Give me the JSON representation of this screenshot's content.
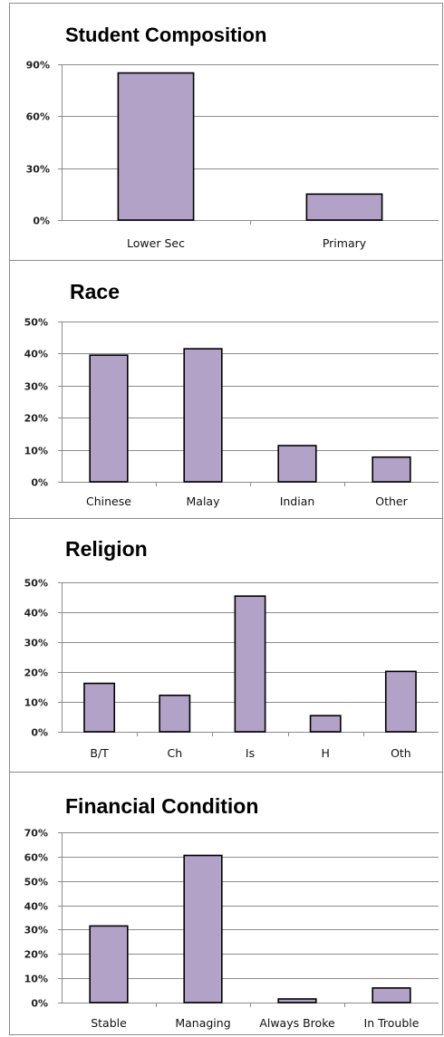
{
  "chart_data": [
    {
      "type": "bar",
      "title": "Student Composition",
      "categories": [
        "Lower Sec",
        "Primary"
      ],
      "values": [
        85,
        15
      ],
      "ylim": [
        0,
        90
      ],
      "yticks": [
        "0%",
        "30%",
        "60%",
        "90%"
      ],
      "grid": true,
      "bar_color": "#b3a2c7"
    },
    {
      "type": "bar",
      "title": "Race",
      "categories": [
        "Chinese",
        "Malay",
        "Indian",
        "Other"
      ],
      "values": [
        39.5,
        41.5,
        11.3,
        7.7
      ],
      "ylim": [
        0,
        50
      ],
      "yticks": [
        "0%",
        "10%",
        "20%",
        "30%",
        "40%",
        "50%"
      ],
      "grid": true,
      "bar_color": "#b3a2c7"
    },
    {
      "type": "bar",
      "title": "Religion",
      "categories": [
        "B/T",
        "Ch",
        "Is",
        "H",
        "Oth"
      ],
      "values": [
        16.2,
        12.2,
        45.4,
        5.4,
        20.2
      ],
      "ylim": [
        0,
        50
      ],
      "yticks": [
        "0%",
        "10%",
        "20%",
        "30%",
        "40%",
        "50%"
      ],
      "grid": true,
      "bar_color": "#b3a2c7"
    },
    {
      "type": "bar",
      "title": "Financial Condition",
      "categories": [
        "Stable",
        "Managing",
        "Always Broke",
        "In Trouble"
      ],
      "values": [
        31.5,
        60.5,
        1.5,
        6
      ],
      "ylim": [
        0,
        70
      ],
      "yticks": [
        "0%",
        "10%",
        "20%",
        "30%",
        "40%",
        "50%",
        "60%",
        "70%"
      ],
      "grid": true,
      "bar_color": "#b3a2c7"
    }
  ]
}
